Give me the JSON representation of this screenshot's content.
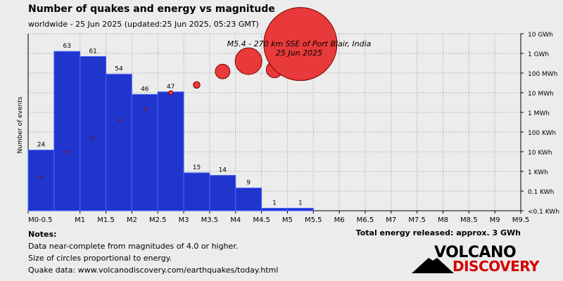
{
  "header": {
    "title": "Number of quakes and energy vs magnitude",
    "subtitle": "worldwide - 25 Jun 2025 (updated:25 Jun 2025, 05:23 GMT)"
  },
  "notes": {
    "heading": "Notes:",
    "line1": "Data near-complete from magnitudes of 4.0 or higher.",
    "line2": "Size of circles proportional to energy.",
    "line3": "Quake data: www.volcanodiscovery.com/earthquakes/today.html"
  },
  "total_energy": "Total energy released: approx. 3 GWh",
  "logo": {
    "word1": "VOLCANO",
    "word2": "DISCOVERY"
  },
  "chart_data": {
    "type": "bar",
    "ylabel": "Number of events",
    "x_ticks": [
      "M0-0.5",
      "M1",
      "M1.5",
      "M2",
      "M2.5",
      "M3",
      "M3.5",
      "M4",
      "M4.5",
      "M5",
      "M5.5",
      "M6",
      "M6.5",
      "M7",
      "M7.5",
      "M8",
      "M8.5",
      "M9",
      "M9.5"
    ],
    "bins": [
      {
        "from": 0.0,
        "to": 0.5,
        "count": 24
      },
      {
        "from": 0.5,
        "to": 1.0,
        "count": 63
      },
      {
        "from": 1.0,
        "to": 1.5,
        "count": 61
      },
      {
        "from": 1.5,
        "to": 2.0,
        "count": 54
      },
      {
        "from": 2.0,
        "to": 2.5,
        "count": 46
      },
      {
        "from": 2.5,
        "to": 3.0,
        "count": 47
      },
      {
        "from": 3.0,
        "to": 3.5,
        "count": 15
      },
      {
        "from": 3.5,
        "to": 4.0,
        "count": 14
      },
      {
        "from": 4.0,
        "to": 4.5,
        "count": 9
      },
      {
        "from": 4.5,
        "to": 5.0,
        "count": 1
      },
      {
        "from": 5.0,
        "to": 5.5,
        "count": 1
      }
    ],
    "count_max": 70,
    "energy_axis_labels": [
      "10 GWh",
      "1 GWh",
      "100 MWh",
      "10 MWh",
      "1 MWh",
      "100 KWh",
      "10 KWh",
      "1 KWh",
      "0.1 KWh",
      "<0.1 KWh"
    ],
    "energy_levels_mwh": [
      10000,
      1000,
      100,
      10,
      1,
      0.1,
      0.01,
      0.001,
      0.0001,
      1e-05
    ],
    "energy_circles": [
      {
        "magnitude": 0.25,
        "energy_mwh": 0.0005
      },
      {
        "magnitude": 0.75,
        "energy_mwh": 0.01
      },
      {
        "magnitude": 1.25,
        "energy_mwh": 0.05
      },
      {
        "magnitude": 1.75,
        "energy_mwh": 0.4
      },
      {
        "magnitude": 2.25,
        "energy_mwh": 1.5
      },
      {
        "magnitude": 2.75,
        "energy_mwh": 10
      },
      {
        "magnitude": 3.25,
        "energy_mwh": 25
      },
      {
        "magnitude": 3.75,
        "energy_mwh": 120
      },
      {
        "magnitude": 4.25,
        "energy_mwh": 400
      },
      {
        "magnitude": 4.75,
        "energy_mwh": 150
      },
      {
        "magnitude": 5.25,
        "energy_mwh": 3000
      }
    ],
    "annotation": {
      "line1": "M5.4 - 270 km SSE of Port Blair, India",
      "line2": "25 Jun 2025"
    },
    "colors": {
      "bar": "#1f35cc",
      "bar_edge": "#4a62ff",
      "circle": "#e83a3a",
      "circle_edge": "#7a0000",
      "grid": "#9a9a9a"
    }
  }
}
